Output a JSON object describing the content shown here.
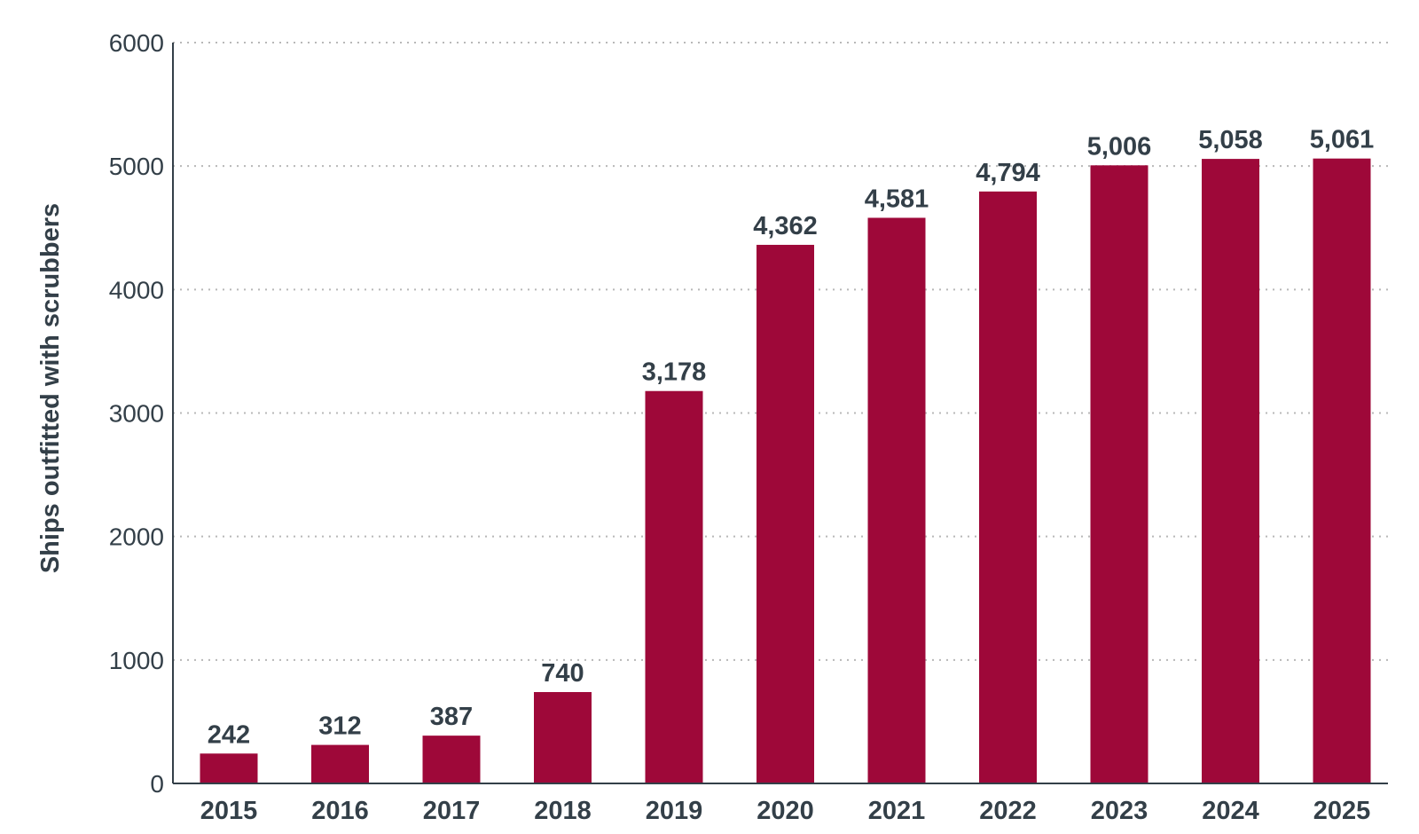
{
  "chart_data": {
    "type": "bar",
    "title": "",
    "xlabel": "",
    "ylabel": "Ships outfitted with scrubbers",
    "categories": [
      "2015",
      "2016",
      "2017",
      "2018",
      "2019",
      "2020",
      "2021",
      "2022",
      "2023",
      "2024",
      "2025"
    ],
    "values": [
      242,
      312,
      387,
      740,
      3178,
      4362,
      4581,
      4794,
      5006,
      5058,
      5061
    ],
    "data_labels": [
      "242",
      "312",
      "387",
      "740",
      "3,178",
      "4,362",
      "4,581",
      "4,794",
      "5,006",
      "5,058",
      "5,061"
    ],
    "ylim": [
      0,
      6000
    ],
    "yticks": [
      0,
      1000,
      2000,
      3000,
      4000,
      5000,
      6000
    ],
    "ytick_labels": [
      "0",
      "1000",
      "2000",
      "3000",
      "4000",
      "5000",
      "6000"
    ],
    "grid": true,
    "legend": "none",
    "bar_color": "#9e0839",
    "text_color": "#333f48"
  }
}
